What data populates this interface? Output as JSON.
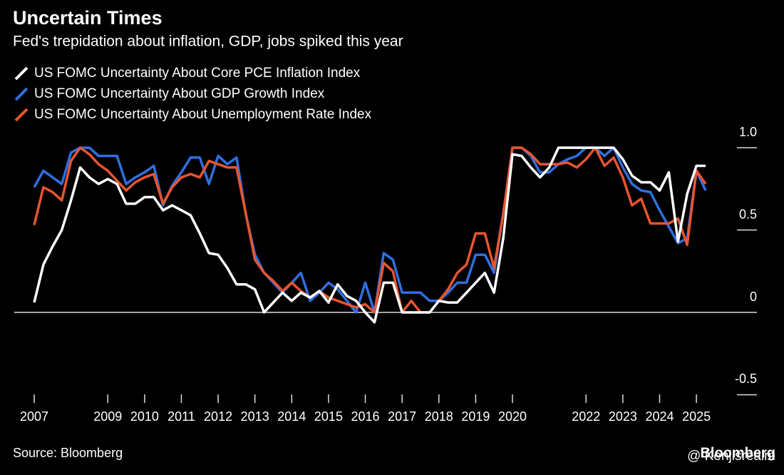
{
  "chart_data": {
    "type": "line",
    "title": "Uncertain Times",
    "subtitle": "Fed's trepidation about inflation, GDP, jobs spiked this year",
    "source": "Source: Bloomberg",
    "logo": "Bloomberg",
    "watermark": "@ Kenjisrealm",
    "categories": [
      "2007",
      null,
      null,
      null,
      null,
      null,
      null,
      null,
      "2009",
      null,
      null,
      null,
      "2010",
      null,
      null,
      null,
      "2011",
      null,
      null,
      null,
      "2012",
      null,
      null,
      null,
      "2013",
      null,
      null,
      null,
      "2014",
      null,
      null,
      null,
      "2015",
      null,
      null,
      null,
      "2016",
      null,
      null,
      null,
      "2017",
      null,
      null,
      null,
      "2018",
      null,
      null,
      null,
      "2019",
      null,
      null,
      null,
      "2020",
      null,
      null,
      null,
      null,
      null,
      null,
      null,
      "2022",
      null,
      null,
      null,
      "2023",
      null,
      null,
      null,
      "2024",
      null,
      null,
      null,
      "2025",
      null
    ],
    "series": [
      {
        "name": "US FOMC Uncertainty About Core PCE Inflation Index",
        "color": "#ffffff",
        "values": [
          0.06,
          0.29,
          0.4,
          0.5,
          0.68,
          0.88,
          0.82,
          0.78,
          0.81,
          0.78,
          0.66,
          0.66,
          0.7,
          0.7,
          0.62,
          0.65,
          0.62,
          0.59,
          0.48,
          0.36,
          0.35,
          0.27,
          0.17,
          0.17,
          0.14,
          0.0,
          0.06,
          0.12,
          0.07,
          0.12,
          0.09,
          0.13,
          0.06,
          0.17,
          0.1,
          0.07,
          0.0,
          -0.06,
          0.18,
          0.18,
          0.0,
          0.0,
          0.0,
          0.0,
          0.07,
          0.06,
          0.06,
          0.12,
          0.18,
          0.24,
          0.12,
          0.45,
          0.96,
          0.95,
          0.88,
          0.82,
          0.88,
          1.0,
          1.0,
          1.0,
          1.0,
          1.0,
          1.0,
          1.0,
          0.93,
          0.83,
          0.79,
          0.79,
          0.74,
          0.85,
          0.43,
          0.72,
          0.89,
          0.89
        ]
      },
      {
        "name": "US FOMC Uncertainty About GDP Growth Index",
        "color": "#2f6fe0",
        "values": [
          0.76,
          0.86,
          0.82,
          0.78,
          0.97,
          1.0,
          1.0,
          0.95,
          0.95,
          0.95,
          0.78,
          0.82,
          0.85,
          0.89,
          0.65,
          0.77,
          0.85,
          0.94,
          0.94,
          0.78,
          0.95,
          0.9,
          0.94,
          0.6,
          0.35,
          0.24,
          0.18,
          0.12,
          0.18,
          0.24,
          0.07,
          0.12,
          0.18,
          0.14,
          0.07,
          0.0,
          0.18,
          0.0,
          0.36,
          0.32,
          0.12,
          0.12,
          0.12,
          0.07,
          0.07,
          0.12,
          0.18,
          0.18,
          0.35,
          0.35,
          0.24,
          0.6,
          1.0,
          1.0,
          0.95,
          0.85,
          0.85,
          0.9,
          0.93,
          0.95,
          1.0,
          1.0,
          0.95,
          1.0,
          0.88,
          0.78,
          0.74,
          0.73,
          0.62,
          0.52,
          0.42,
          0.45,
          0.86,
          0.74
        ]
      },
      {
        "name": "US FOMC Uncertainty About Unemployment Rate Index",
        "color": "#e8552f",
        "values": [
          0.53,
          0.76,
          0.73,
          0.68,
          0.92,
          1.0,
          0.96,
          0.9,
          0.86,
          0.8,
          0.74,
          0.79,
          0.82,
          0.84,
          0.66,
          0.76,
          0.82,
          0.84,
          0.82,
          0.92,
          0.9,
          0.88,
          0.88,
          0.6,
          0.32,
          0.24,
          0.19,
          0.13,
          0.18,
          0.13,
          0.09,
          0.13,
          0.09,
          0.07,
          0.05,
          0.03,
          0.05,
          0.0,
          0.3,
          0.25,
          0.0,
          0.07,
          0.0,
          0.0,
          0.07,
          0.14,
          0.24,
          0.29,
          0.48,
          0.48,
          0.27,
          0.6,
          1.0,
          1.0,
          0.96,
          0.9,
          0.9,
          0.9,
          0.91,
          0.88,
          0.93,
          1.0,
          0.89,
          0.94,
          0.82,
          0.65,
          0.69,
          0.54,
          0.54,
          0.54,
          0.57,
          0.41,
          0.86,
          0.78
        ]
      }
    ],
    "ylim": [
      -0.55,
      1.1
    ],
    "yticks": [
      {
        "value": 1,
        "label": "1.0"
      },
      0.5,
      0,
      -0.5
    ],
    "grid": true
  }
}
